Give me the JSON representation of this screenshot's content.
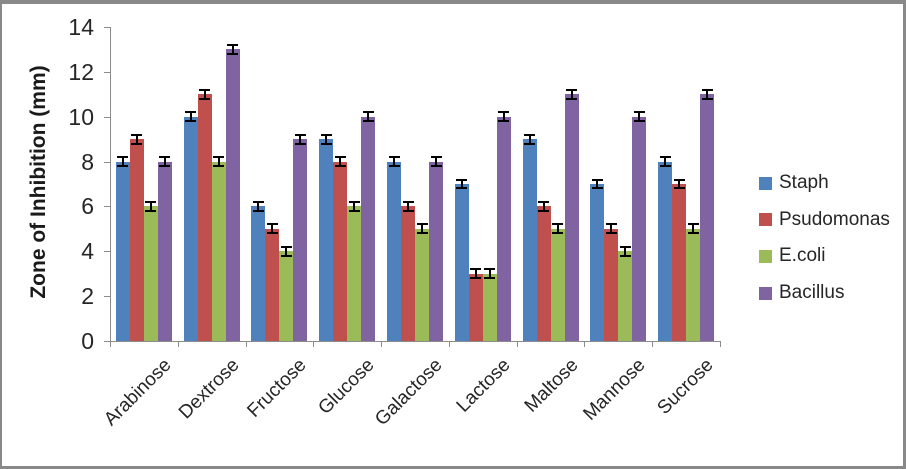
{
  "frame": {
    "background": "#ffffff",
    "border_color": "#898989"
  },
  "chart_data": {
    "type": "bar",
    "title": "",
    "xlabel": "",
    "ylabel": "Zone of Inhibition (mm)",
    "ylim": [
      0,
      14
    ],
    "yticks": [
      0,
      2,
      4,
      6,
      8,
      10,
      12,
      14
    ],
    "grid": false,
    "legend_position": "right",
    "error_bar": 0.2,
    "categories": [
      "Arabinose",
      "Dextrose",
      "Fructose",
      "Glucose",
      "Galactose",
      "Lactose",
      "Maltose",
      "Mannose",
      "Sucrose"
    ],
    "series": [
      {
        "name": "Staph",
        "color": "#4F81BD",
        "values": [
          8,
          10,
          6,
          9,
          8,
          7,
          9,
          7,
          8
        ]
      },
      {
        "name": "Psudomonas",
        "color": "#C0504D",
        "values": [
          9,
          11,
          5,
          8,
          6,
          3,
          6,
          5,
          7
        ]
      },
      {
        "name": "E.coli",
        "color": "#9BBB59",
        "values": [
          6,
          8,
          4,
          6,
          5,
          3,
          5,
          4,
          5
        ]
      },
      {
        "name": "Bacillus",
        "color": "#8064A2",
        "values": [
          8,
          13,
          9,
          10,
          8,
          10,
          11,
          10,
          11
        ]
      }
    ],
    "axis_color": "#8c8c8c",
    "error_bar_color": "#000000"
  }
}
